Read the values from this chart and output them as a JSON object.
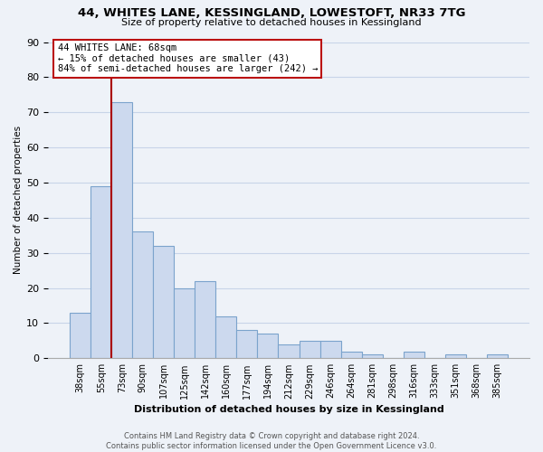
{
  "title1": "44, WHITES LANE, KESSINGLAND, LOWESTOFT, NR33 7TG",
  "title2": "Size of property relative to detached houses in Kessingland",
  "xlabel": "Distribution of detached houses by size in Kessingland",
  "ylabel": "Number of detached properties",
  "bin_labels": [
    "38sqm",
    "55sqm",
    "73sqm",
    "90sqm",
    "107sqm",
    "125sqm",
    "142sqm",
    "160sqm",
    "177sqm",
    "194sqm",
    "212sqm",
    "229sqm",
    "246sqm",
    "264sqm",
    "281sqm",
    "298sqm",
    "316sqm",
    "333sqm",
    "351sqm",
    "368sqm",
    "385sqm"
  ],
  "bar_heights": [
    13,
    49,
    73,
    36,
    32,
    20,
    22,
    12,
    8,
    7,
    4,
    5,
    5,
    2,
    1,
    0,
    2,
    0,
    1,
    0,
    1
  ],
  "bar_color": "#ccd9ee",
  "bar_edge_color": "#7ba3cc",
  "property_line_color": "#aa0000",
  "ylim": [
    0,
    90
  ],
  "yticks": [
    0,
    10,
    20,
    30,
    40,
    50,
    60,
    70,
    80,
    90
  ],
  "annotation_line1": "44 WHITES LANE: 68sqm",
  "annotation_line2": "← 15% of detached houses are smaller (43)",
  "annotation_line3": "84% of semi-detached houses are larger (242) →",
  "annotation_box_color": "#ffffff",
  "annotation_box_edge": "#bb1111",
  "footer_text": "Contains HM Land Registry data © Crown copyright and database right 2024.\nContains public sector information licensed under the Open Government Licence v3.0.",
  "background_color": "#eef2f8",
  "grid_color": "#c8d4e8"
}
